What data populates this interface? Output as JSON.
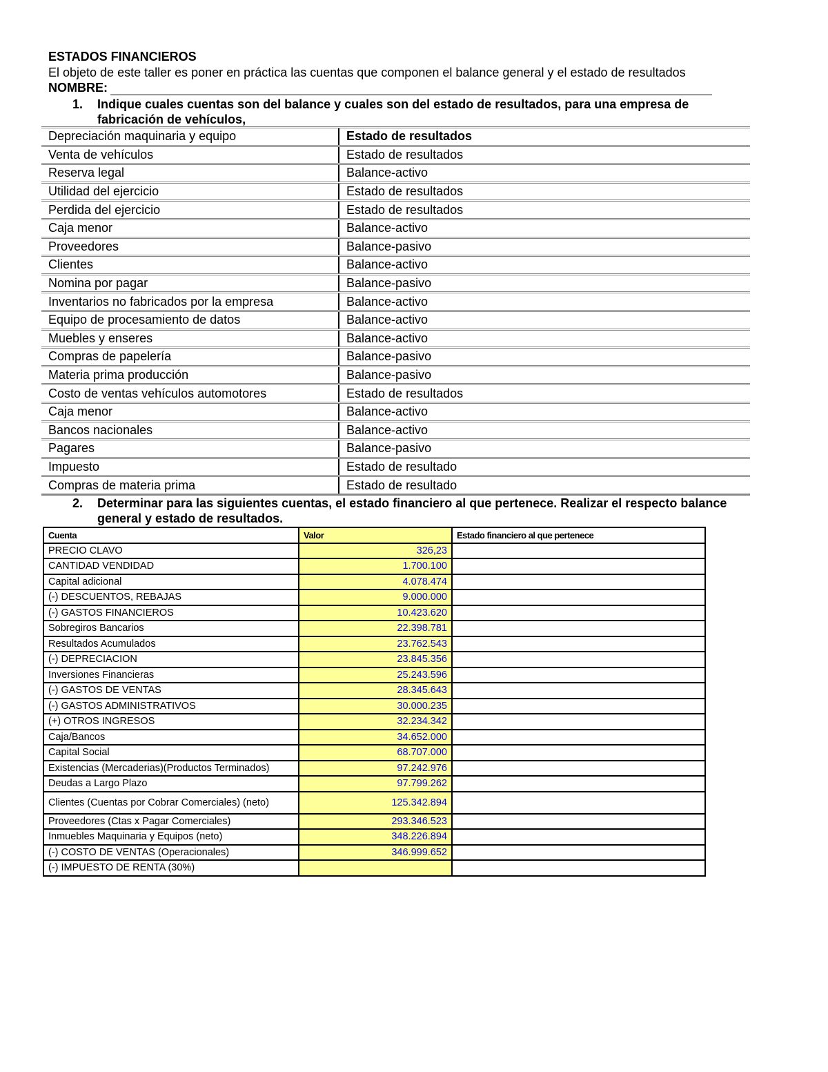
{
  "title": "ESTADOS FINANCIEROS",
  "intro": "El objeto de este taller es poner en práctica las cuentas que componen el balance general y el estado de resultados",
  "nombre_label": "NOMBRE:",
  "question1": {
    "number": "1.",
    "text": "Indique cuales cuentas son del balance y cuales son del estado de resultados, para una empresa de fabricación de vehículos,"
  },
  "table1": [
    {
      "cuenta": "Depreciación maquinaria y equipo",
      "estado": "Estado de resultados"
    },
    {
      "cuenta": "Venta de vehículos",
      "estado": "Estado de resultados"
    },
    {
      "cuenta": "Reserva legal",
      "estado": "Balance-activo"
    },
    {
      "cuenta": "Utilidad del ejercicio",
      "estado": "Estado de resultados"
    },
    {
      "cuenta": "Perdida del ejercicio",
      "estado": "Estado de resultados"
    },
    {
      "cuenta": "Caja menor",
      "estado": "Balance-activo"
    },
    {
      "cuenta": "Proveedores",
      "estado": "Balance-pasivo"
    },
    {
      "cuenta": "Clientes",
      "estado": "Balance-activo"
    },
    {
      "cuenta": "Nomina por pagar",
      "estado": "Balance-pasivo"
    },
    {
      "cuenta": "Inventarios no fabricados por la empresa",
      "estado": "Balance-activo"
    },
    {
      "cuenta": "Equipo de procesamiento de datos",
      "estado": "Balance-activo"
    },
    {
      "cuenta": "Muebles y enseres",
      "estado": "Balance-activo"
    },
    {
      "cuenta": "Compras de papelería",
      "estado": "Balance-pasivo"
    },
    {
      "cuenta": "Materia prima producción",
      "estado": "Balance-pasivo"
    },
    {
      "cuenta": "Costo de ventas vehículos automotores",
      "estado": "Estado de resultados"
    },
    {
      "cuenta": "Caja menor",
      "estado": "Balance-activo"
    },
    {
      "cuenta": "Bancos nacionales",
      "estado": "Balance-activo"
    },
    {
      "cuenta": "Pagares",
      "estado": "Balance-pasivo"
    },
    {
      "cuenta": "Impuesto",
      "estado": "Estado de resultado"
    },
    {
      "cuenta": "Compras de materia prima",
      "estado": "Estado de resultado"
    }
  ],
  "question2": {
    "number": "2.",
    "text": "Determinar para las siguientes cuentas, el estado financiero al que pertenece. Realizar el respecto balance general y estado de resultados."
  },
  "table2": {
    "headers": [
      "Cuenta",
      "Valor",
      "Estado financiero al que pertenece"
    ],
    "rows": [
      {
        "cuenta": "PRECIO CLAVO",
        "valor": "326,23",
        "estado": ""
      },
      {
        "cuenta": "CANTIDAD VENDIDAD",
        "valor": "1.700.100",
        "estado": ""
      },
      {
        "cuenta": "Capital adicional",
        "valor": "4.078.474",
        "estado": ""
      },
      {
        "cuenta": "(-) DESCUENTOS, REBAJAS",
        "valor": "9.000.000",
        "estado": ""
      },
      {
        "cuenta": "(-) GASTOS FINANCIEROS",
        "valor": "10.423.620",
        "estado": ""
      },
      {
        "cuenta": "Sobregiros Bancarios",
        "valor": "22.398.781",
        "estado": ""
      },
      {
        "cuenta": "Resultados Acumulados",
        "valor": "23.762.543",
        "estado": ""
      },
      {
        "cuenta": "(-) DEPRECIACION",
        "valor": "23.845.356",
        "estado": ""
      },
      {
        "cuenta": "Inversiones Financieras",
        "valor": "25.243.596",
        "estado": ""
      },
      {
        "cuenta": "(-) GASTOS DE VENTAS",
        "valor": "28.345.643",
        "estado": ""
      },
      {
        "cuenta": "(-) GASTOS ADMINISTRATIVOS",
        "valor": "30.000.235",
        "estado": ""
      },
      {
        "cuenta": "(+) OTROS INGRESOS",
        "valor": "32.234.342",
        "estado": ""
      },
      {
        "cuenta": "Caja/Bancos",
        "valor": "34.652.000",
        "estado": ""
      },
      {
        "cuenta": "Capital Social",
        "valor": "68.707.000",
        "estado": ""
      },
      {
        "cuenta": "Existencias (Mercaderias)(Productos Terminados)",
        "valor": "97.242.976",
        "estado": ""
      },
      {
        "cuenta": "Deudas a Largo Plazo",
        "valor": "97.799.262",
        "estado": ""
      },
      {
        "cuenta": "Clientes (Cuentas por Cobrar Comerciales) (neto)",
        "valor": "125.342.894",
        "estado": ""
      },
      {
        "cuenta": "Proveedores (Ctas x Pagar Comerciales)",
        "valor": "293.346.523",
        "estado": ""
      },
      {
        "cuenta": "Inmuebles Maquinaria y Equipos (neto)",
        "valor": "348.226.894",
        "estado": ""
      },
      {
        "cuenta": "(-) COSTO DE VENTAS (Operacionales)",
        "valor": "346.999.652",
        "estado": ""
      },
      {
        "cuenta": "(-) IMPUESTO DE RENTA (30%)",
        "valor": "",
        "estado": ""
      }
    ]
  },
  "colors": {
    "value_cell_bg": "#ffff99",
    "value_text": "#0000ee"
  }
}
